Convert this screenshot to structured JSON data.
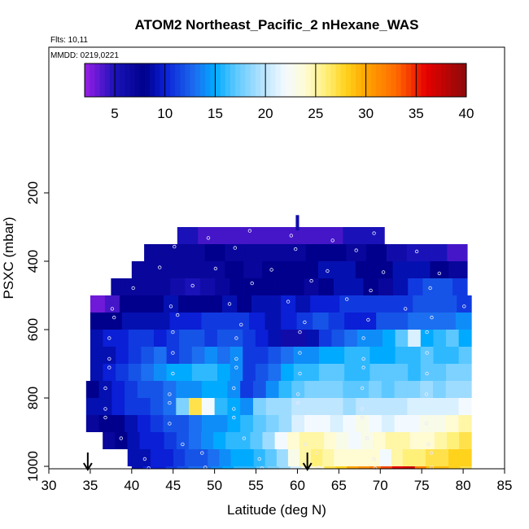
{
  "chart_data": {
    "type": "heatmap",
    "title": "ATOM2 Northeast_Pacific_2 nHexane_WAS",
    "flights_label": "Flts: 10,11",
    "dates_label": "MMDD: 0219,0221",
    "xlabel": "Latitude (deg N)",
    "ylabel": "PSXC (mbar)",
    "xlim": [
      30,
      85
    ],
    "ylim": [
      1000,
      0
    ],
    "xticks": [
      30,
      35,
      40,
      45,
      50,
      55,
      60,
      65,
      70,
      75,
      80,
      85
    ],
    "yticks": [
      200,
      400,
      600,
      800,
      1000
    ],
    "colorbar": {
      "min": 2,
      "max": 40,
      "ticks": [
        5,
        10,
        15,
        20,
        25,
        30,
        35,
        40
      ],
      "stops": [
        {
          "v": 2,
          "color": "#9a1ee8"
        },
        {
          "v": 5,
          "color": "#1a12b8"
        },
        {
          "v": 8,
          "color": "#00008c"
        },
        {
          "v": 10,
          "color": "#0a1fd6"
        },
        {
          "v": 13,
          "color": "#1c6ff0"
        },
        {
          "v": 15,
          "color": "#00aaff"
        },
        {
          "v": 17,
          "color": "#5cc8ff"
        },
        {
          "v": 20,
          "color": "#bfe6ff"
        },
        {
          "v": 22,
          "color": "#f3faff"
        },
        {
          "v": 24,
          "color": "#fffbd2"
        },
        {
          "v": 26,
          "color": "#fff07a"
        },
        {
          "v": 28,
          "color": "#ffd21c"
        },
        {
          "v": 30,
          "color": "#ffa500"
        },
        {
          "v": 33,
          "color": "#ff6a00"
        },
        {
          "v": 36,
          "color": "#e60000"
        },
        {
          "v": 40,
          "color": "#8c0a0a"
        }
      ]
    },
    "arrow_markers_latitude": [
      34.7,
      61.2
    ],
    "isolated_cell": {
      "lat": [
        59.8,
        60.2
      ],
      "p": [
        265,
        310
      ],
      "value": 6
    },
    "bands": [
      {
        "p": [
          300,
          350
        ],
        "lat": [
          45.5,
          70.5
        ],
        "values": [
          5,
          4,
          4,
          4,
          4,
          4,
          4,
          4,
          5,
          5
        ]
      },
      {
        "p": [
          350,
          400
        ],
        "lat": [
          41.5,
          80.5
        ],
        "values": [
          7,
          7,
          7,
          8,
          7,
          7,
          7,
          7,
          8,
          8,
          7,
          8,
          6,
          5,
          5,
          4
        ]
      },
      {
        "p": [
          400,
          450
        ],
        "lat": [
          40.0,
          80.5
        ],
        "values": [
          7,
          7,
          7,
          7,
          7,
          8,
          7,
          8,
          8,
          8,
          9,
          9,
          8,
          8,
          9,
          9,
          8,
          7
        ]
      },
      {
        "p": [
          450,
          500
        ],
        "lat": [
          37.5,
          80.5
        ],
        "values": [
          7,
          7,
          7,
          7,
          6,
          5,
          6,
          7,
          8,
          8,
          8,
          8,
          8,
          7,
          8,
          9,
          9,
          8,
          7,
          9,
          11,
          12,
          12,
          11
        ]
      },
      {
        "p": [
          500,
          550
        ],
        "lat": [
          35.0,
          81.0
        ],
        "values": [
          3,
          4,
          8,
          8,
          8,
          9,
          8,
          8,
          8,
          9,
          8,
          9,
          9,
          10,
          9,
          10,
          10,
          11,
          11,
          11,
          11,
          11,
          12,
          12,
          12,
          11
        ]
      },
      {
        "p": [
          550,
          600
        ],
        "lat": [
          35.0,
          81.0
        ],
        "values": [
          8,
          8,
          9,
          9,
          9,
          10,
          10,
          11,
          11,
          11,
          10,
          9,
          10,
          11,
          12,
          11,
          10,
          10,
          12,
          12,
          13,
          13,
          13,
          14
        ]
      },
      {
        "p": [
          600,
          650
        ],
        "lat": [
          35.0,
          81.0
        ],
        "values": [
          9,
          10,
          10,
          11,
          11,
          10,
          11,
          12,
          12,
          11,
          12,
          12,
          11,
          10,
          9,
          6,
          6,
          9,
          11,
          12,
          13,
          14,
          14,
          15,
          17,
          21,
          15,
          16,
          17,
          15
        ]
      },
      {
        "p": [
          650,
          700
        ],
        "lat": [
          35.0,
          81.0
        ],
        "values": [
          9,
          9,
          10,
          11,
          12,
          13,
          11,
          12,
          13,
          14,
          13,
          14,
          11,
          11,
          12,
          13,
          14,
          14,
          15,
          15,
          16,
          16,
          15,
          15,
          16,
          16,
          17,
          16,
          16,
          17
        ]
      },
      {
        "p": [
          700,
          750
        ],
        "lat": [
          35.0,
          81.0
        ],
        "values": [
          9,
          10,
          11,
          12,
          13,
          14,
          15,
          15,
          16,
          16,
          15,
          14,
          11,
          12,
          13,
          15,
          16,
          16,
          17,
          17,
          16,
          16,
          17,
          17,
          17,
          16,
          17,
          17,
          18,
          18
        ]
      },
      {
        "p": [
          750,
          800
        ],
        "lat": [
          34.5,
          81.0
        ],
        "values": [
          8,
          9,
          10,
          11,
          12,
          12,
          13,
          14,
          14,
          15,
          15,
          14,
          11,
          12,
          14,
          16,
          17,
          18,
          18,
          18,
          17,
          17,
          18,
          17,
          18,
          18,
          19,
          18,
          19,
          19
        ]
      },
      {
        "p": [
          800,
          850
        ],
        "lat": [
          34.5,
          81.0
        ],
        "values": [
          9,
          9,
          10,
          11,
          11,
          12,
          13,
          18,
          27,
          22,
          16,
          15,
          14,
          18,
          19,
          19,
          20,
          20,
          20,
          20,
          19,
          20,
          20,
          20,
          20,
          21,
          21,
          21,
          21,
          22
        ]
      },
      {
        "p": [
          850,
          900
        ],
        "lat": [
          34.5,
          81.0
        ],
        "values": [
          7,
          8,
          8,
          9,
          10,
          11,
          12,
          12,
          13,
          14,
          14,
          15,
          16,
          17,
          18,
          19,
          21,
          22,
          22,
          21,
          22,
          23,
          22,
          21,
          22,
          22,
          23,
          23,
          24,
          25
        ]
      },
      {
        "p": [
          900,
          950
        ],
        "lat": [
          36.5,
          81.0
        ],
        "values": [
          7,
          8,
          9,
          10,
          10,
          11,
          12,
          13,
          14,
          15,
          16,
          16,
          17,
          19,
          22,
          24,
          25,
          25,
          24,
          23,
          22,
          23,
          24,
          25,
          25,
          24,
          24,
          25,
          26,
          27
        ]
      },
      {
        "p": [
          950,
          1000
        ],
        "lat": [
          39.5,
          81.0
        ],
        "values": [
          9,
          9,
          10,
          10,
          11,
          12,
          12,
          13,
          14,
          15,
          15,
          16,
          17,
          19,
          23,
          25,
          26,
          25,
          24,
          24,
          24,
          24,
          22,
          25,
          26,
          26,
          27,
          27,
          28,
          28
        ]
      },
      {
        "p": [
          1000,
          1050
        ],
        "lat": [
          40.0,
          81.0
        ],
        "values": [
          9,
          10,
          10,
          11,
          12,
          13,
          13,
          14,
          15,
          16,
          16,
          17,
          18,
          19,
          21,
          23,
          24,
          27,
          28,
          30,
          31,
          32,
          34,
          36,
          37,
          32,
          29,
          29,
          28,
          27
        ]
      }
    ]
  }
}
